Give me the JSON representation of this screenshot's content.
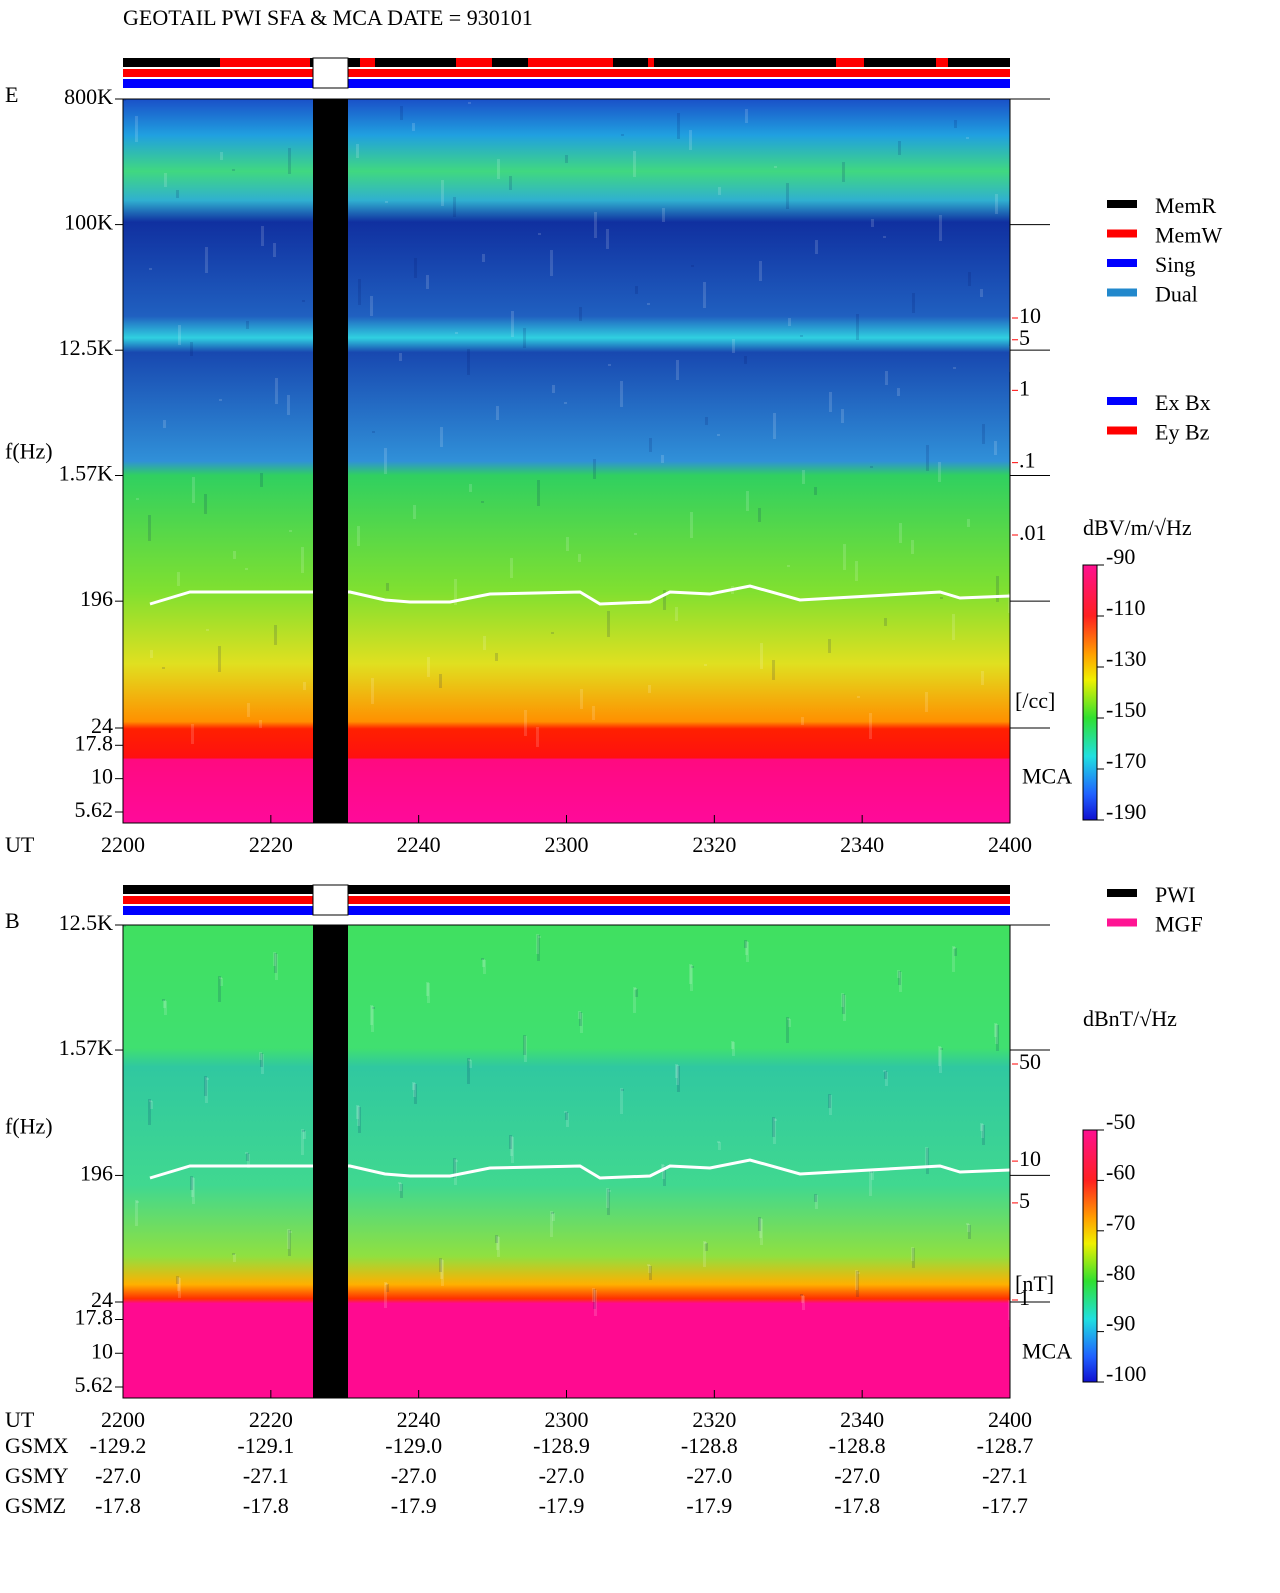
{
  "chart_data": [
    {
      "type": "spectrogram",
      "title": "GEOTAIL   PWI SFA & MCA   DATE = 930101",
      "panel_label": "E",
      "ylabel": "f(Hz)",
      "xlabel": "UT",
      "mca_label": "MCA",
      "log_y": true,
      "ylim": [
        5.62,
        800000
      ],
      "yticks": [
        {
          "value": 800000,
          "label": "800K"
        },
        {
          "value": 100000,
          "label": "100K"
        },
        {
          "value": 12500,
          "label": "12.5K"
        },
        {
          "value": 1570,
          "label": "1.57K"
        },
        196,
        24,
        17.8,
        10,
        5.62
      ],
      "xlim": [
        2200,
        2400
      ],
      "xticks": [
        2200,
        2220,
        2240,
        2300,
        2320,
        2340,
        2400
      ],
      "y2label": "[/cc]",
      "y2lim": [
        0.01,
        10
      ],
      "y2ticks": [
        10,
        5,
        1,
        {
          "value": 0.1,
          "label": ".1"
        },
        {
          "value": 0.01,
          "label": ".01"
        }
      ],
      "y2_color": "#ff0000",
      "colorbar": {
        "label": "dBV/m/√Hz",
        "lim": [
          -190,
          -90
        ],
        "ticks": [
          -90,
          -110,
          -130,
          -150,
          -170,
          -190
        ]
      },
      "legend": [
        {
          "name": "MemR",
          "color": "#000000"
        },
        {
          "name": "MemW",
          "color": "#ff0000"
        },
        {
          "name": "Sing",
          "color": "#0000ff"
        },
        {
          "name": "Dual",
          "color": "#2288cc"
        }
      ],
      "legend2": [
        {
          "name": "Ex Bx",
          "color": "#0000ff"
        },
        {
          "name": "Ey Bz",
          "color": "#ff0000"
        }
      ]
    },
    {
      "type": "spectrogram",
      "panel_label": "B",
      "ylabel": "f(Hz)",
      "xlabel": "UT",
      "mca_label": "MCA",
      "log_y": true,
      "ylim": [
        5.62,
        12500
      ],
      "yticks": [
        {
          "value": 12500,
          "label": "12.5K"
        },
        {
          "value": 1570,
          "label": "1.57K"
        },
        196,
        24,
        17.8,
        10,
        5.62
      ],
      "xlim": [
        2200,
        2400
      ],
      "xticks": [
        2200,
        2220,
        2240,
        2300,
        2320,
        2340,
        2400
      ],
      "y2label": "[nT]",
      "y2lim": [
        1,
        50
      ],
      "y2ticks": [
        50,
        10,
        5,
        1
      ],
      "y2_color": "#ff0000",
      "colorbar": {
        "label": "dBnT/√Hz",
        "lim": [
          -100,
          -50
        ],
        "ticks": [
          -50,
          -60,
          -70,
          -80,
          -90,
          -100
        ]
      },
      "legend": [
        {
          "name": "PWI",
          "color": "#000000"
        },
        {
          "name": "MGF",
          "color": "#ff1493"
        }
      ]
    }
  ],
  "ephemeris": {
    "rows": [
      {
        "label": "GSMX",
        "values": [
          "-129.2",
          "-129.1",
          "-129.0",
          "-128.9",
          "-128.8",
          "-128.8",
          "-128.7"
        ]
      },
      {
        "label": "GSMY",
        "values": [
          "-27.0",
          "-27.1",
          "-27.0",
          "-27.0",
          "-27.0",
          "-27.0",
          "-27.1"
        ]
      },
      {
        "label": "GSMZ",
        "values": [
          "-17.8",
          "-17.8",
          "-17.9",
          "-17.9",
          "-17.9",
          "-17.8",
          "-17.7"
        ]
      }
    ]
  }
}
